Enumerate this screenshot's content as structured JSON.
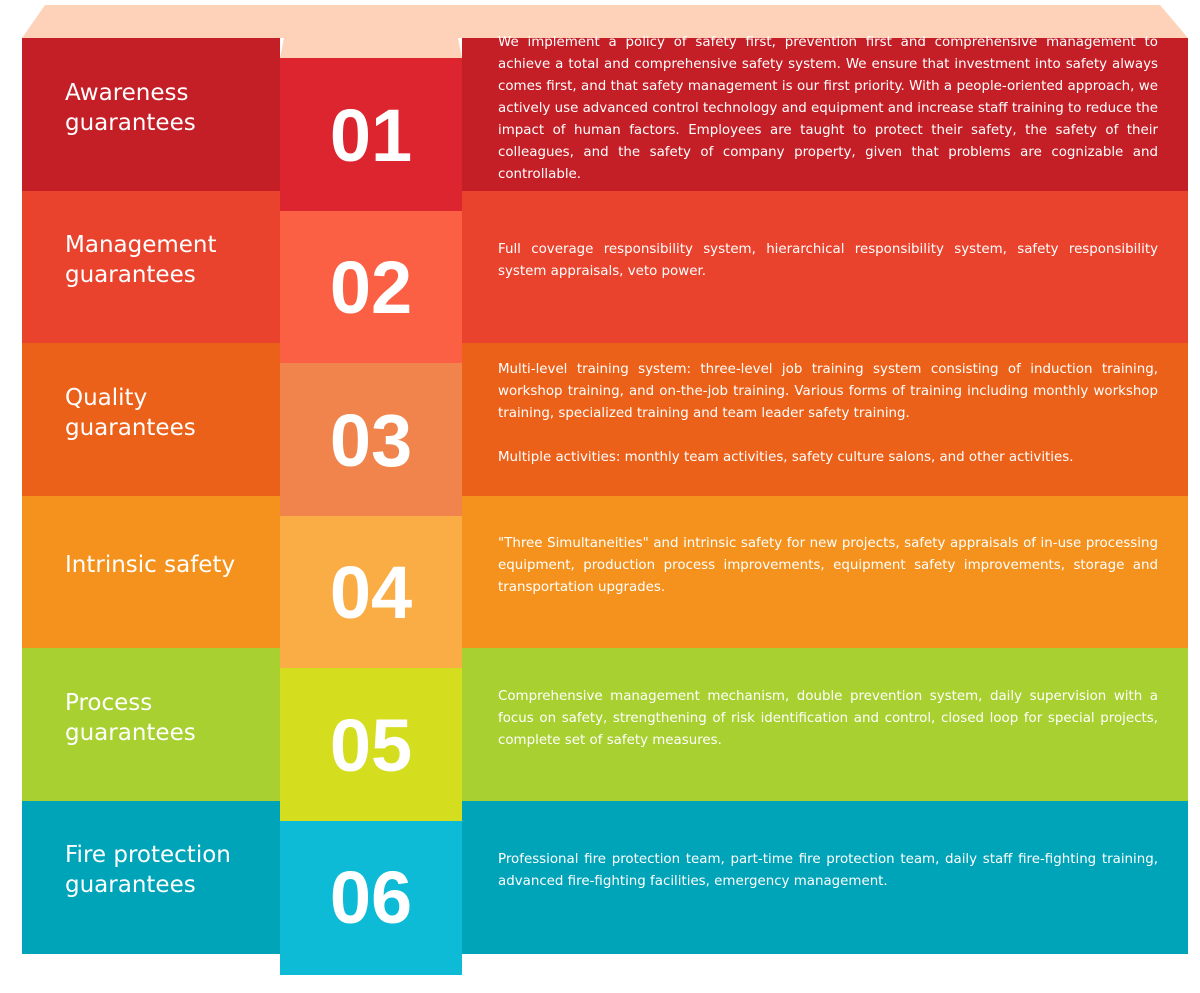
{
  "rows": [
    {
      "title": "Awareness guarantees",
      "number": "01",
      "paragraphs": [
        "We implement a policy of safety first, prevention first and comprehensive management to achieve a total and comprehensive safety system. We ensure that investment into safety always comes first, and that safety management is our first priority. With a people-oriented approach, we actively use advanced control technology and equipment and increase staff training to reduce the impact of human factors. Employees are taught to protect their safety, the safety of their colleagues, and the safety of company property, given that problems are cognizable and controllable."
      ]
    },
    {
      "title": "Management guarantees",
      "number": "02",
      "paragraphs": [
        "Full coverage responsibility system, hierarchical responsibility system, safety responsibility system appraisals, veto power."
      ]
    },
    {
      "title": "Quality guarantees",
      "number": "03",
      "paragraphs": [
        "Multi-level training system: three-level job training system consisting of induction training, workshop training, and on-the-job training. Various forms of training including monthly workshop training, specialized training and team leader safety training.",
        "Multiple activities: monthly team activities, safety culture salons, and other activities."
      ]
    },
    {
      "title": "Intrinsic safety",
      "number": "04",
      "paragraphs": [
        "\"Three Simultaneities\" and intrinsic safety for new projects, safety appraisals of in-use processing equipment, production process improvements, equipment safety improvements, storage and transportation upgrades."
      ]
    },
    {
      "title": "Process guarantees",
      "number": "05",
      "paragraphs": [
        "Comprehensive management mechanism, double prevention system, daily supervision with a focus on safety, strengthening of risk identification and control, closed loop for special projects, complete set of safety measures."
      ]
    },
    {
      "title": "Fire protection guarantees",
      "number": "06",
      "paragraphs": [
        "Professional fire protection team, part-time fire protection team, daily staff fire-fighting training, advanced fire-fighting facilities, emergency management."
      ]
    }
  ]
}
